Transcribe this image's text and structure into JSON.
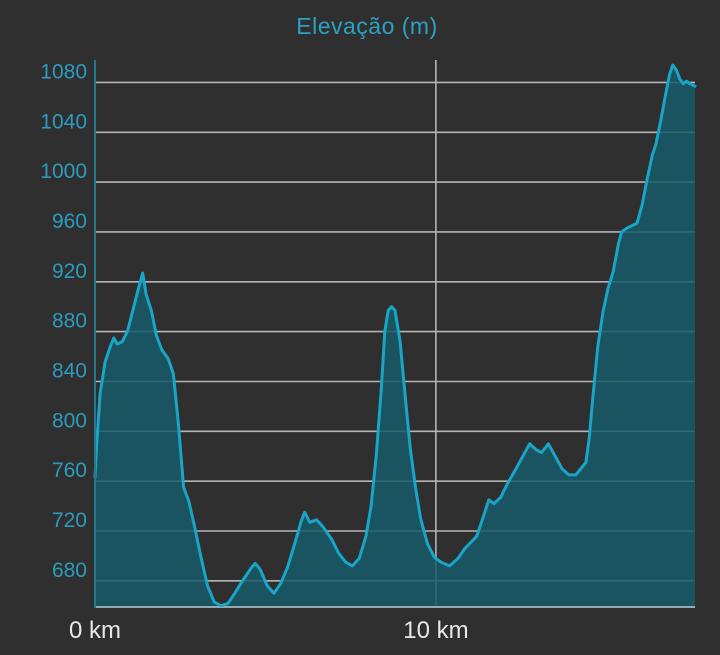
{
  "page": {
    "background": "#2f2f2f"
  },
  "chart": {
    "title": "Elevação (m)",
    "colors": {
      "title": "#2ba1c3",
      "y_tick_label": "#2b9cbe",
      "x_tick_label": "#e8e8e8",
      "line": "#19a5c8",
      "fill": "rgba(21,90,104,0.85)",
      "gridline": "#b4b4b4",
      "y_axis_line": "#26798d",
      "x_axis_line": "#95abb0"
    }
  },
  "chart_data": {
    "type": "area",
    "title": "Elevação (m)",
    "x_unit": "km",
    "y_unit": "m",
    "grid": true,
    "legend": "none",
    "xlim": [
      0,
      17.6
    ],
    "ylim": [
      659,
      1098
    ],
    "y_ticks": [
      680,
      720,
      760,
      800,
      840,
      880,
      920,
      960,
      1000,
      1040,
      1080
    ],
    "x_ticks": [
      {
        "value": 0,
        "label": "0 km"
      },
      {
        "value": 10,
        "label": "10 km"
      }
    ],
    "points": [
      [
        0.0,
        763
      ],
      [
        0.05,
        790
      ],
      [
        0.15,
        830
      ],
      [
        0.3,
        856
      ],
      [
        0.45,
        868
      ],
      [
        0.55,
        875
      ],
      [
        0.65,
        870
      ],
      [
        0.8,
        872
      ],
      [
        0.95,
        880
      ],
      [
        1.1,
        896
      ],
      [
        1.25,
        912
      ],
      [
        1.4,
        927
      ],
      [
        1.5,
        910
      ],
      [
        1.65,
        897
      ],
      [
        1.8,
        877
      ],
      [
        1.95,
        866
      ],
      [
        2.15,
        858
      ],
      [
        2.3,
        846
      ],
      [
        2.45,
        805
      ],
      [
        2.6,
        755
      ],
      [
        2.75,
        744
      ],
      [
        2.9,
        726
      ],
      [
        3.1,
        700
      ],
      [
        3.3,
        676
      ],
      [
        3.5,
        663
      ],
      [
        3.7,
        660
      ],
      [
        3.9,
        662
      ],
      [
        4.1,
        670
      ],
      [
        4.35,
        681
      ],
      [
        4.6,
        691
      ],
      [
        4.7,
        694
      ],
      [
        4.85,
        689
      ],
      [
        5.05,
        676
      ],
      [
        5.25,
        670
      ],
      [
        5.45,
        678
      ],
      [
        5.65,
        691
      ],
      [
        5.85,
        709
      ],
      [
        6.05,
        728
      ],
      [
        6.15,
        735
      ],
      [
        6.3,
        727
      ],
      [
        6.5,
        729
      ],
      [
        6.7,
        723
      ],
      [
        6.95,
        713
      ],
      [
        7.15,
        702
      ],
      [
        7.35,
        695
      ],
      [
        7.55,
        692
      ],
      [
        7.75,
        698
      ],
      [
        7.95,
        716
      ],
      [
        8.1,
        740
      ],
      [
        8.25,
        780
      ],
      [
        8.4,
        835
      ],
      [
        8.5,
        880
      ],
      [
        8.6,
        897
      ],
      [
        8.7,
        900
      ],
      [
        8.8,
        897
      ],
      [
        8.95,
        872
      ],
      [
        9.1,
        828
      ],
      [
        9.25,
        786
      ],
      [
        9.4,
        755
      ],
      [
        9.55,
        730
      ],
      [
        9.75,
        710
      ],
      [
        9.95,
        699
      ],
      [
        10.15,
        695
      ],
      [
        10.4,
        692
      ],
      [
        10.65,
        698
      ],
      [
        10.85,
        706
      ],
      [
        11.1,
        713
      ],
      [
        11.2,
        716
      ],
      [
        11.35,
        728
      ],
      [
        11.55,
        745
      ],
      [
        11.7,
        742
      ],
      [
        11.9,
        747
      ],
      [
        12.1,
        758
      ],
      [
        12.35,
        770
      ],
      [
        12.55,
        780
      ],
      [
        12.75,
        790
      ],
      [
        12.95,
        785
      ],
      [
        13.1,
        783
      ],
      [
        13.3,
        790
      ],
      [
        13.5,
        780
      ],
      [
        13.7,
        770
      ],
      [
        13.9,
        765
      ],
      [
        14.1,
        765
      ],
      [
        14.25,
        770
      ],
      [
        14.4,
        775
      ],
      [
        14.5,
        795
      ],
      [
        14.6,
        826
      ],
      [
        14.75,
        868
      ],
      [
        14.9,
        896
      ],
      [
        15.05,
        915
      ],
      [
        15.2,
        928
      ],
      [
        15.35,
        950
      ],
      [
        15.45,
        960
      ],
      [
        15.6,
        963
      ],
      [
        15.75,
        965
      ],
      [
        15.9,
        967
      ],
      [
        16.05,
        982
      ],
      [
        16.2,
        1003
      ],
      [
        16.35,
        1022
      ],
      [
        16.45,
        1030
      ],
      [
        16.6,
        1050
      ],
      [
        16.75,
        1072
      ],
      [
        16.85,
        1086
      ],
      [
        16.95,
        1094
      ],
      [
        17.05,
        1090
      ],
      [
        17.15,
        1083
      ],
      [
        17.25,
        1079
      ],
      [
        17.35,
        1081
      ],
      [
        17.45,
        1079
      ],
      [
        17.6,
        1077
      ]
    ]
  }
}
